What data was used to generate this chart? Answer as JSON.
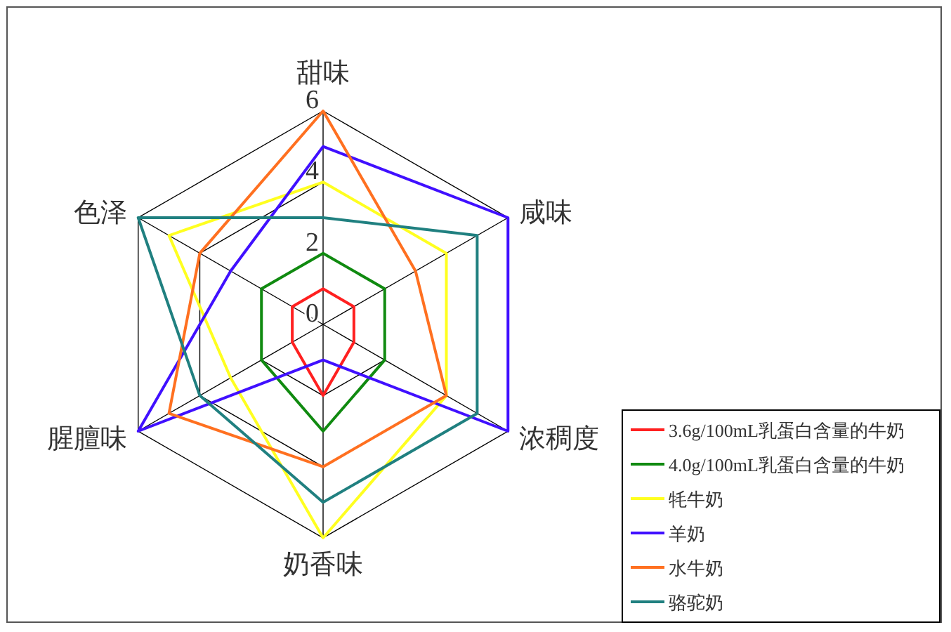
{
  "chart_data": {
    "type": "radar",
    "categories": [
      "甜味",
      "咸味",
      "浓稠度",
      "奶香味",
      "腥膻味",
      "色泽"
    ],
    "ylim": [
      0,
      6
    ],
    "yticks": [
      0,
      2,
      4,
      6
    ],
    "legend": "bottom right",
    "series": [
      {
        "name": "3.6g/100mL乳蛋白含量的牛奶",
        "color": "#ff2020",
        "values": [
          1,
          1,
          1,
          2,
          1,
          1
        ]
      },
      {
        "name": "4.0g/100mL乳蛋白含量的牛奶",
        "color": "#108a10",
        "values": [
          2,
          2,
          2,
          3,
          2,
          2
        ]
      },
      {
        "name": "牦牛奶",
        "color": "#ffff20",
        "values": [
          4,
          4,
          4,
          6,
          3,
          5
        ]
      },
      {
        "name": "羊奶",
        "color": "#4010ff",
        "values": [
          5,
          6,
          6,
          1,
          6,
          3
        ]
      },
      {
        "name": "水牛奶",
        "color": "#ff7020",
        "values": [
          6,
          3,
          4,
          4,
          5,
          4
        ]
      },
      {
        "name": "骆驼奶",
        "color": "#208080",
        "values": [
          3,
          5,
          5,
          5,
          4,
          6
        ]
      }
    ]
  }
}
